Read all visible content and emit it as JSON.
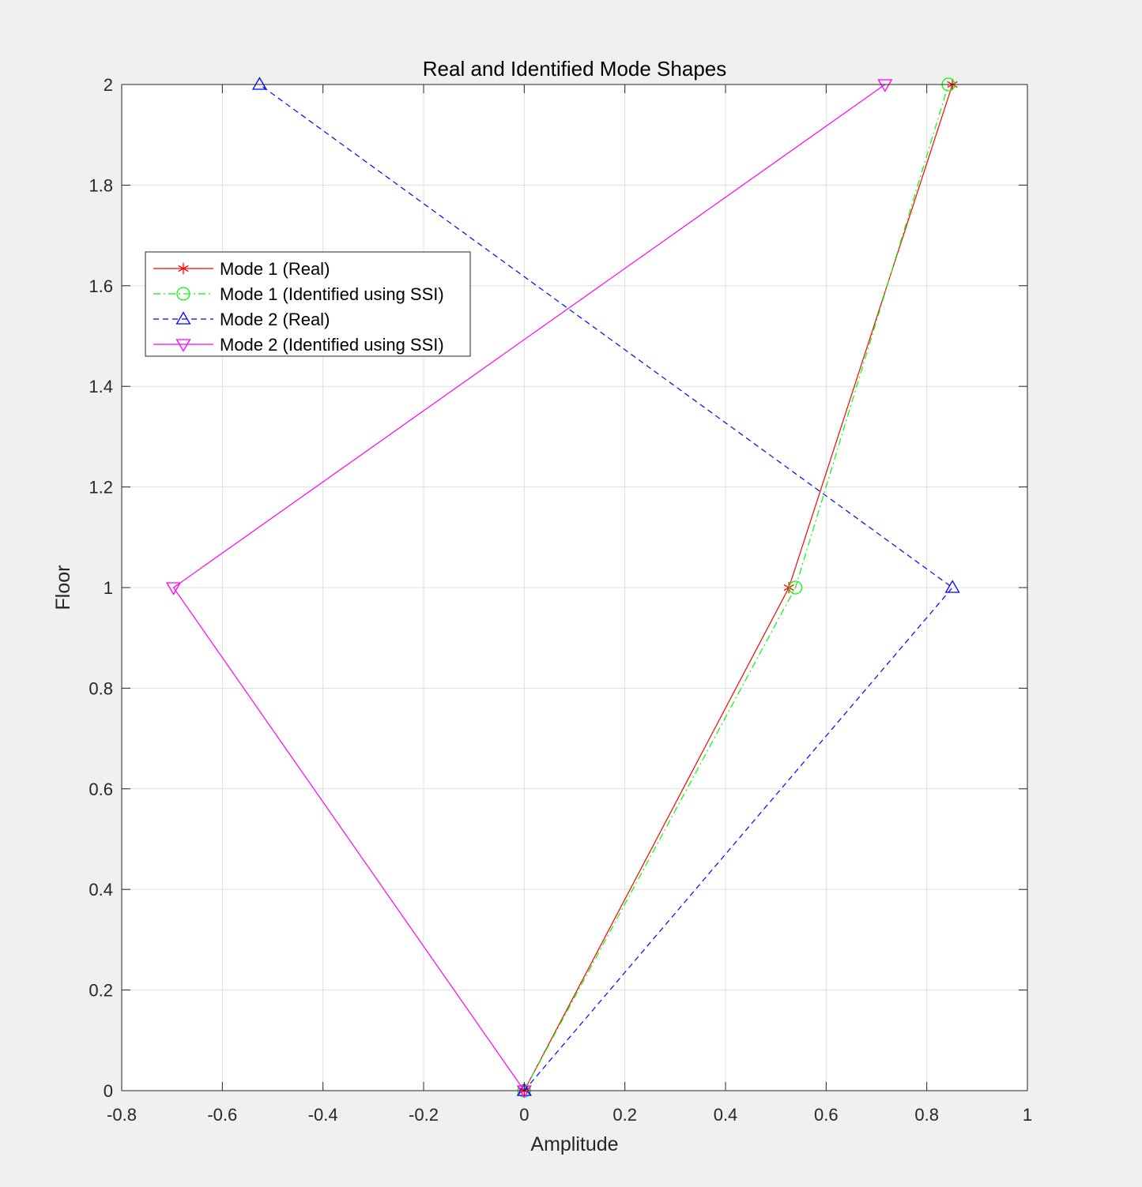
{
  "chart_data": {
    "type": "line",
    "title": "Real and Identified Mode Shapes",
    "xlabel": "Amplitude",
    "ylabel": "Floor",
    "xlim": [
      -0.8,
      1
    ],
    "ylim": [
      0,
      2
    ],
    "x_ticks": [
      "-0.8",
      "-0.6",
      "-0.4",
      "-0.2",
      "0",
      "0.2",
      "0.4",
      "0.6",
      "0.8",
      "1"
    ],
    "y_ticks": [
      "0",
      "0.2",
      "0.4",
      "0.6",
      "0.8",
      "1",
      "1.2",
      "1.4",
      "1.6",
      "1.8",
      "2"
    ],
    "grid": true,
    "legend_position": "top-left",
    "series": [
      {
        "name": "Mode 1 (Real)",
        "x": [
          0,
          0.526,
          0.851
        ],
        "y": [
          0,
          1,
          2
        ],
        "color": "#ff0000",
        "dash": "solid",
        "marker": "asterisk"
      },
      {
        "name": "Mode 1 (Identified using SSI)",
        "x": [
          0,
          0.539,
          0.843
        ],
        "y": [
          0,
          1,
          2
        ],
        "color": "#00ff00",
        "dash": "dashdot",
        "marker": "circle"
      },
      {
        "name": "Mode 2 (Real)",
        "x": [
          0,
          0.851,
          -0.526
        ],
        "y": [
          0,
          1,
          2
        ],
        "color": "#0000ff",
        "dash": "dashed",
        "marker": "triangle-up"
      },
      {
        "name": "Mode 2 (Identified using SSI)",
        "x": [
          0,
          -0.697,
          0.717
        ],
        "y": [
          0,
          1,
          2
        ],
        "color": "#ff00ff",
        "dash": "solid",
        "marker": "triangle-down"
      }
    ]
  }
}
